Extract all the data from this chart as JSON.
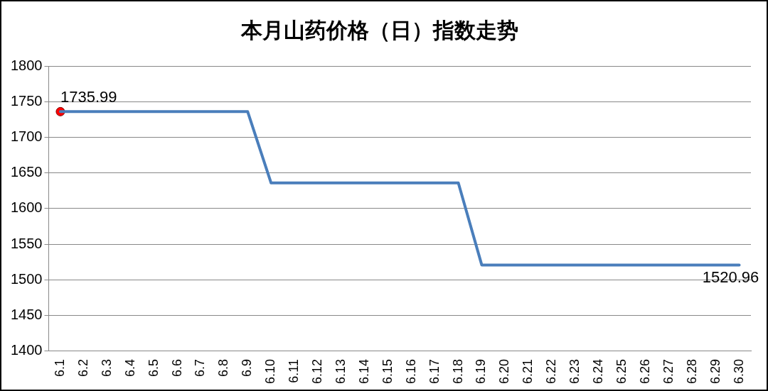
{
  "chart_data": {
    "type": "line",
    "title": "本月山药价格（日）指数走势",
    "categories": [
      "6.1",
      "6.2",
      "6.3",
      "6.4",
      "6.5",
      "6.6",
      "6.7",
      "6.8",
      "6.9",
      "6.10",
      "6.11",
      "6.12",
      "6.13",
      "6.14",
      "6.15",
      "6.16",
      "6.17",
      "6.18",
      "6.19",
      "6.20",
      "6.21",
      "6.22",
      "6.23",
      "6.24",
      "6.25",
      "6.26",
      "6.27",
      "6.28",
      "6.29",
      "6.30"
    ],
    "series": [
      {
        "color": "#4a7ebb",
        "values": [
          1735.99,
          1735.99,
          1735.99,
          1735.99,
          1735.99,
          1735.99,
          1735.99,
          1735.99,
          1735.99,
          1636,
          1636,
          1636,
          1636,
          1636,
          1636,
          1636,
          1636,
          1636,
          1520.96,
          1520.96,
          1520.96,
          1520.96,
          1520.96,
          1520.96,
          1520.96,
          1520.96,
          1520.96,
          1520.96,
          1520.96,
          1520.96
        ],
        "value_labels": [
          "1735.99",
          null,
          null,
          null,
          null,
          null,
          null,
          null,
          null,
          null,
          null,
          null,
          null,
          null,
          null,
          null,
          null,
          null,
          null,
          null,
          null,
          null,
          null,
          null,
          null,
          null,
          null,
          null,
          null,
          "1520.96"
        ]
      },
      {
        "type": "scatter",
        "x": [
          "6.1"
        ],
        "values": [
          1735.99
        ],
        "color": "#ff0000",
        "marker": "circle"
      }
    ],
    "ylim": [
      1400,
      1800
    ],
    "yticks": [
      1400,
      1450,
      1500,
      1550,
      1600,
      1650,
      1700,
      1750,
      1800
    ],
    "grid": "y",
    "legend": false
  }
}
